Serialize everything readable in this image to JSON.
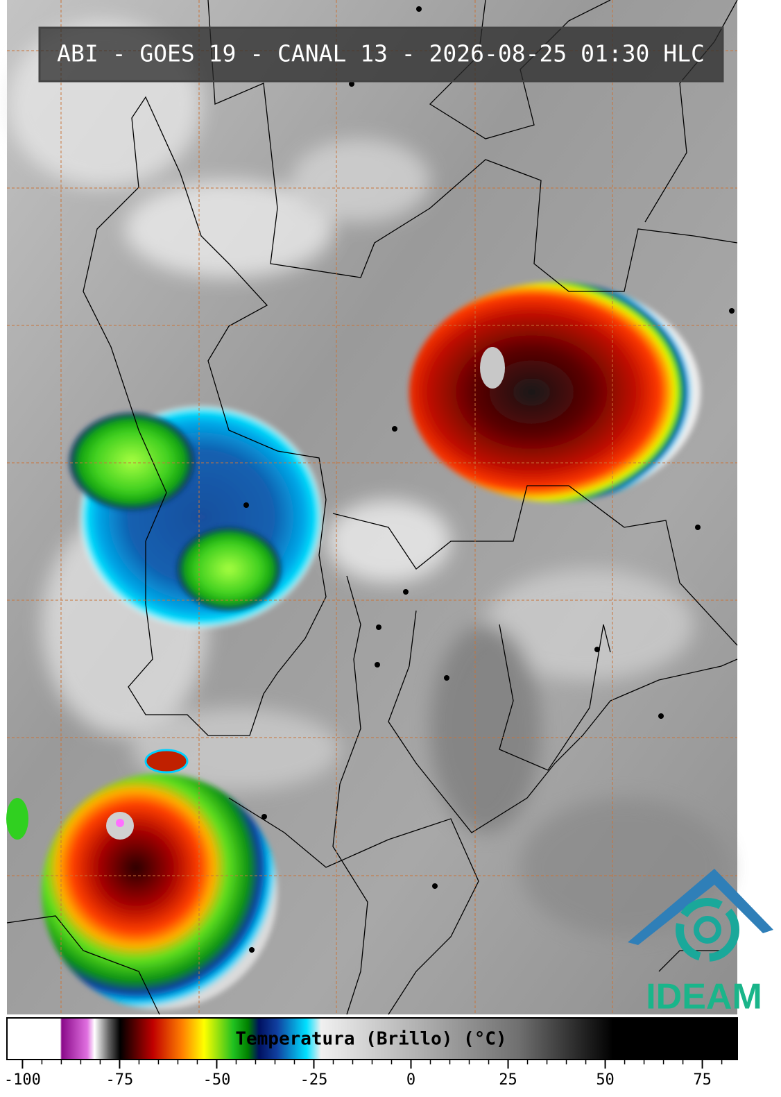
{
  "title": "ABI - GOES 19 - CANAL 13 - 2026-08-25 01:30 HLC",
  "colorbar": {
    "label": "Temperatura (Brillo) (°C)",
    "xlim": [
      -104,
      84
    ],
    "xticks": [
      -100,
      -75,
      -50,
      -25,
      0,
      25,
      50,
      75
    ]
  },
  "logo": "IDEAM"
}
